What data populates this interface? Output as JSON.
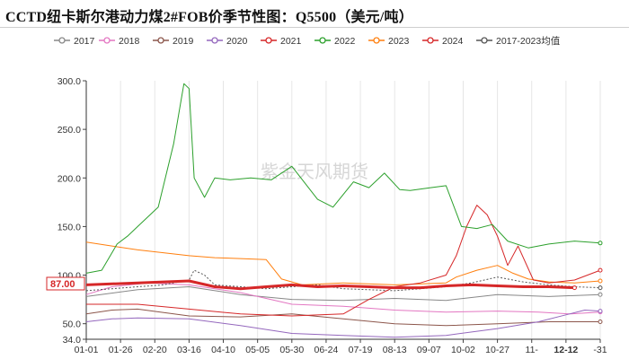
{
  "title": "CCTD纽卡斯尔港动力煤2#FOB价季节性图：Q5500（美元/吨）",
  "watermark": "紫金天风期货",
  "current_label": {
    "value": "87.00",
    "color": "#d62728"
  },
  "highlight_date": {
    "value": "12-12",
    "color": "#d62728"
  },
  "chart_data": {
    "type": "line",
    "title": "CCTD纽卡斯尔港动力煤2#FOB价季节性图：Q5500（美元/吨）",
    "xlabel": "",
    "ylabel": "",
    "x_ticks": [
      "01-01",
      "01-26",
      "02-20",
      "03-16",
      "04-10",
      "05-05",
      "05-30",
      "06-24",
      "07-19",
      "08-13",
      "09-07",
      "10-02",
      "10-27",
      "11-",
      "12-12",
      "-31"
    ],
    "y_ticks": [
      34.0,
      50.0,
      100.0,
      150.0,
      200.0,
      250.0,
      300.0
    ],
    "ylim": [
      34,
      300
    ],
    "grid": "vertical",
    "legend": "top",
    "series": [
      {
        "name": "2017",
        "color": "#888888",
        "style": "solid",
        "width": 1,
        "x": [
          0,
          0.1,
          0.2,
          0.3,
          0.4,
          0.5,
          0.6,
          0.7,
          0.8,
          0.9,
          1
        ],
        "y": [
          78,
          85,
          88,
          80,
          75,
          74,
          76,
          74,
          80,
          78,
          80
        ]
      },
      {
        "name": "2018",
        "color": "#e377c2",
        "style": "solid",
        "width": 1,
        "x": [
          0,
          0.05,
          0.12,
          0.2,
          0.3,
          0.4,
          0.5,
          0.6,
          0.7,
          0.8,
          0.88,
          0.94,
          1
        ],
        "y": [
          80,
          88,
          92,
          90,
          82,
          70,
          68,
          64,
          62,
          63,
          62,
          60,
          62
        ]
      },
      {
        "name": "2019",
        "color": "#8c564b",
        "style": "solid",
        "width": 1,
        "x": [
          0,
          0.05,
          0.1,
          0.2,
          0.3,
          0.4,
          0.5,
          0.6,
          0.7,
          0.8,
          0.9,
          1
        ],
        "y": [
          60,
          64,
          65,
          58,
          57,
          60,
          55,
          50,
          48,
          50,
          52,
          52
        ]
      },
      {
        "name": "2020",
        "color": "#9467bd",
        "style": "solid",
        "width": 1,
        "x": [
          0,
          0.05,
          0.1,
          0.2,
          0.3,
          0.4,
          0.5,
          0.6,
          0.7,
          0.8,
          0.88,
          0.94,
          0.97,
          1
        ],
        "y": [
          52,
          55,
          56,
          55,
          48,
          40,
          38,
          36,
          38,
          45,
          52,
          60,
          64,
          63
        ]
      },
      {
        "name": "2021",
        "color": "#d62728",
        "style": "solid",
        "width": 1,
        "x": [
          0,
          0.1,
          0.2,
          0.3,
          0.4,
          0.5,
          0.55,
          0.6,
          0.65,
          0.7,
          0.72,
          0.74,
          0.76,
          0.78,
          0.8,
          0.82,
          0.84,
          0.87,
          0.9,
          0.95,
          1
        ],
        "y": [
          70,
          70,
          65,
          60,
          58,
          60,
          75,
          88,
          92,
          100,
          120,
          150,
          172,
          162,
          140,
          110,
          130,
          95,
          92,
          95,
          105
        ]
      },
      {
        "name": "2022",
        "color": "#2ca02c",
        "style": "solid",
        "width": 1,
        "x": [
          0,
          0.03,
          0.06,
          0.08,
          0.11,
          0.14,
          0.17,
          0.19,
          0.2,
          0.21,
          0.23,
          0.25,
          0.28,
          0.32,
          0.36,
          0.4,
          0.45,
          0.48,
          0.52,
          0.55,
          0.58,
          0.61,
          0.63,
          0.67,
          0.7,
          0.73,
          0.76,
          0.79,
          0.82,
          0.86,
          0.9,
          0.95,
          1
        ],
        "y": [
          102,
          105,
          132,
          140,
          155,
          170,
          235,
          297,
          292,
          200,
          180,
          200,
          198,
          200,
          198,
          212,
          178,
          170,
          196,
          190,
          205,
          188,
          187,
          190,
          192,
          150,
          148,
          152,
          135,
          128,
          132,
          135,
          133
        ]
      },
      {
        "name": "2023",
        "color": "#ff7f0e",
        "style": "solid",
        "width": 1,
        "x": [
          0,
          0.05,
          0.1,
          0.15,
          0.2,
          0.25,
          0.3,
          0.35,
          0.38,
          0.42,
          0.5,
          0.6,
          0.7,
          0.72,
          0.76,
          0.8,
          0.83,
          0.86,
          0.9,
          0.95,
          1
        ],
        "y": [
          134,
          130,
          126,
          123,
          120,
          118,
          117,
          116,
          96,
          90,
          92,
          90,
          92,
          98,
          105,
          110,
          102,
          96,
          93,
          92,
          94
        ]
      },
      {
        "name": "2024",
        "color": "#d62728",
        "style": "solid",
        "width": 3,
        "x": [
          0,
          0.05,
          0.1,
          0.15,
          0.2,
          0.25,
          0.3,
          0.35,
          0.4,
          0.45,
          0.5,
          0.55,
          0.6,
          0.65,
          0.7,
          0.75,
          0.8,
          0.85,
          0.9,
          0.95
        ],
        "y": [
          90,
          91,
          92,
          93,
          94,
          88,
          86,
          88,
          90,
          88,
          89,
          88,
          87,
          87,
          89,
          90,
          89,
          88,
          88,
          87
        ]
      },
      {
        "name": "2017-2023均值",
        "color": "#555555",
        "style": "dotted",
        "width": 1,
        "x": [
          0,
          0.05,
          0.1,
          0.15,
          0.2,
          0.21,
          0.23,
          0.25,
          0.3,
          0.35,
          0.4,
          0.45,
          0.5,
          0.55,
          0.6,
          0.65,
          0.7,
          0.75,
          0.8,
          0.85,
          0.9,
          0.95,
          1
        ],
        "y": [
          84,
          86,
          88,
          90,
          95,
          105,
          100,
          90,
          88,
          86,
          88,
          90,
          86,
          85,
          84,
          86,
          88,
          92,
          98,
          93,
          90,
          88,
          87
        ]
      }
    ]
  }
}
